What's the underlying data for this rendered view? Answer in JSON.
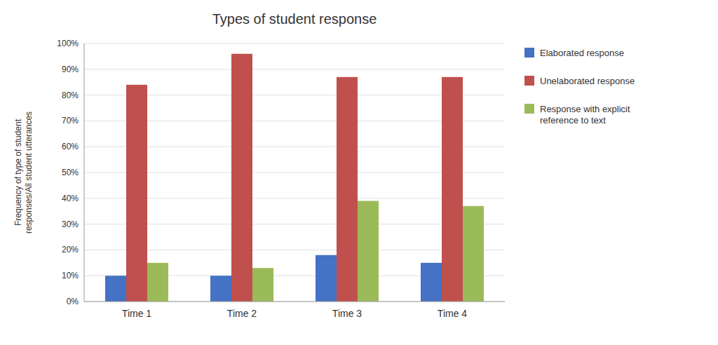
{
  "chart_data": {
    "type": "bar",
    "title": "Types of student response",
    "y_label": "Frequency of type of student\nresponses/All student utterances",
    "categories": [
      "Time 1",
      "Time 2",
      "Time 3",
      "Time 4"
    ],
    "series": [
      {
        "name": "Elaborated response",
        "color": "#4472C4",
        "values": [
          0.1,
          0.1,
          0.18,
          0.15
        ]
      },
      {
        "name": "Unelaborated response",
        "color": "#C0504D",
        "values": [
          0.84,
          0.96,
          0.87,
          0.87
        ]
      },
      {
        "name": "Response with explicit\nreference to text",
        "color": "#9BBB59",
        "values": [
          0.15,
          0.13,
          0.39,
          0.37
        ]
      }
    ],
    "ylim": [
      0,
      1.0
    ],
    "yticks": [
      {
        "value": 0.0,
        "label": "0%"
      },
      {
        "value": 0.1,
        "label": "10%"
      },
      {
        "value": 0.2,
        "label": "20%"
      },
      {
        "value": 0.3,
        "label": "30%"
      },
      {
        "value": 0.4,
        "label": "40%"
      },
      {
        "value": 0.5,
        "label": "50%"
      },
      {
        "value": 0.6,
        "label": "60%"
      },
      {
        "value": 0.7,
        "label": "70%"
      },
      {
        "value": 0.8,
        "label": "80%"
      },
      {
        "value": 0.9,
        "label": "90%"
      },
      {
        "value": 1.0,
        "label": "100%"
      }
    ],
    "grid": true,
    "legend": "right"
  }
}
